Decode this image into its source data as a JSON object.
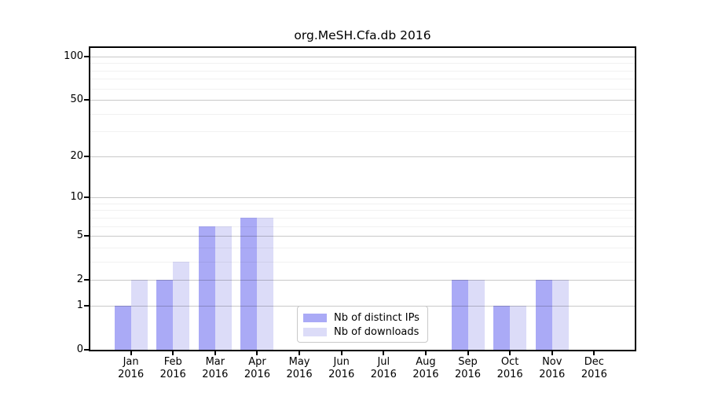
{
  "title": "org.MeSH.Cfa.db 2016",
  "chart_data": {
    "type": "bar",
    "title": "org.MeSH.Cfa.db 2016",
    "categories": [
      "Jan",
      "Feb",
      "Mar",
      "Apr",
      "May",
      "Jun",
      "Jul",
      "Aug",
      "Sep",
      "Oct",
      "Nov",
      "Dec"
    ],
    "year_label": "2016",
    "series": [
      {
        "name": "Nb of distinct IPs",
        "color": "#aaaaf6",
        "values": [
          1,
          2,
          6,
          7,
          0,
          0,
          0,
          0,
          2,
          1,
          2,
          0
        ]
      },
      {
        "name": "Nb of downloads",
        "color": "#dcdcf8",
        "values": [
          2,
          3,
          6,
          7,
          0,
          0,
          0,
          0,
          2,
          1,
          2,
          0
        ]
      }
    ],
    "y_ticks": [
      0,
      1,
      2,
      5,
      10,
      20,
      50,
      100
    ],
    "minor_gridlines": [
      3,
      4,
      6,
      7,
      8,
      9,
      30,
      40,
      60,
      70,
      80,
      90
    ],
    "scale": "log1p",
    "ylim": [
      0,
      115
    ],
    "xlabel": "",
    "ylabel": "",
    "grid": true,
    "legend_position": "bottom-center"
  },
  "colors": {
    "bar_distinct_ips": "#aaaaf6",
    "bar_downloads": "#dcdcf8",
    "axis": "#000000",
    "legend_border": "#c9c9c9",
    "background": "#ffffff"
  }
}
